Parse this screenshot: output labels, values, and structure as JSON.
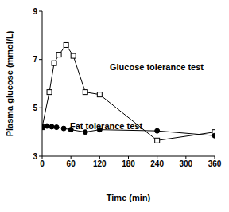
{
  "chart_data": {
    "type": "line",
    "xlabel": "Time (min)",
    "ylabel": "Plasma glucose (mmol/L)",
    "xlim": [
      0,
      360
    ],
    "xticks": [
      0,
      60,
      120,
      180,
      240,
      300,
      360
    ],
    "ylim": [
      3,
      9
    ],
    "yticks": [
      3,
      5,
      7,
      9
    ],
    "grid": false,
    "series": [
      {
        "name": "Glucose tolerance test",
        "color": "#000000",
        "marker": "open_square",
        "line_style": "solid",
        "x": [
          0,
          15,
          25,
          35,
          50,
          65,
          90,
          120,
          240,
          360
        ],
        "values": [
          4.2,
          5.65,
          6.85,
          7.2,
          7.6,
          7.15,
          5.65,
          5.55,
          3.65,
          4.0
        ]
      },
      {
        "name": "Fat tolerance test",
        "color": "#000000",
        "marker": "filled_circle",
        "line_style": "solid",
        "x": [
          0,
          10,
          20,
          30,
          45,
          60,
          90,
          120,
          240,
          360
        ],
        "values": [
          4.2,
          4.25,
          4.22,
          4.2,
          4.15,
          4.1,
          4.0,
          4.1,
          4.05,
          3.85
        ]
      }
    ]
  }
}
